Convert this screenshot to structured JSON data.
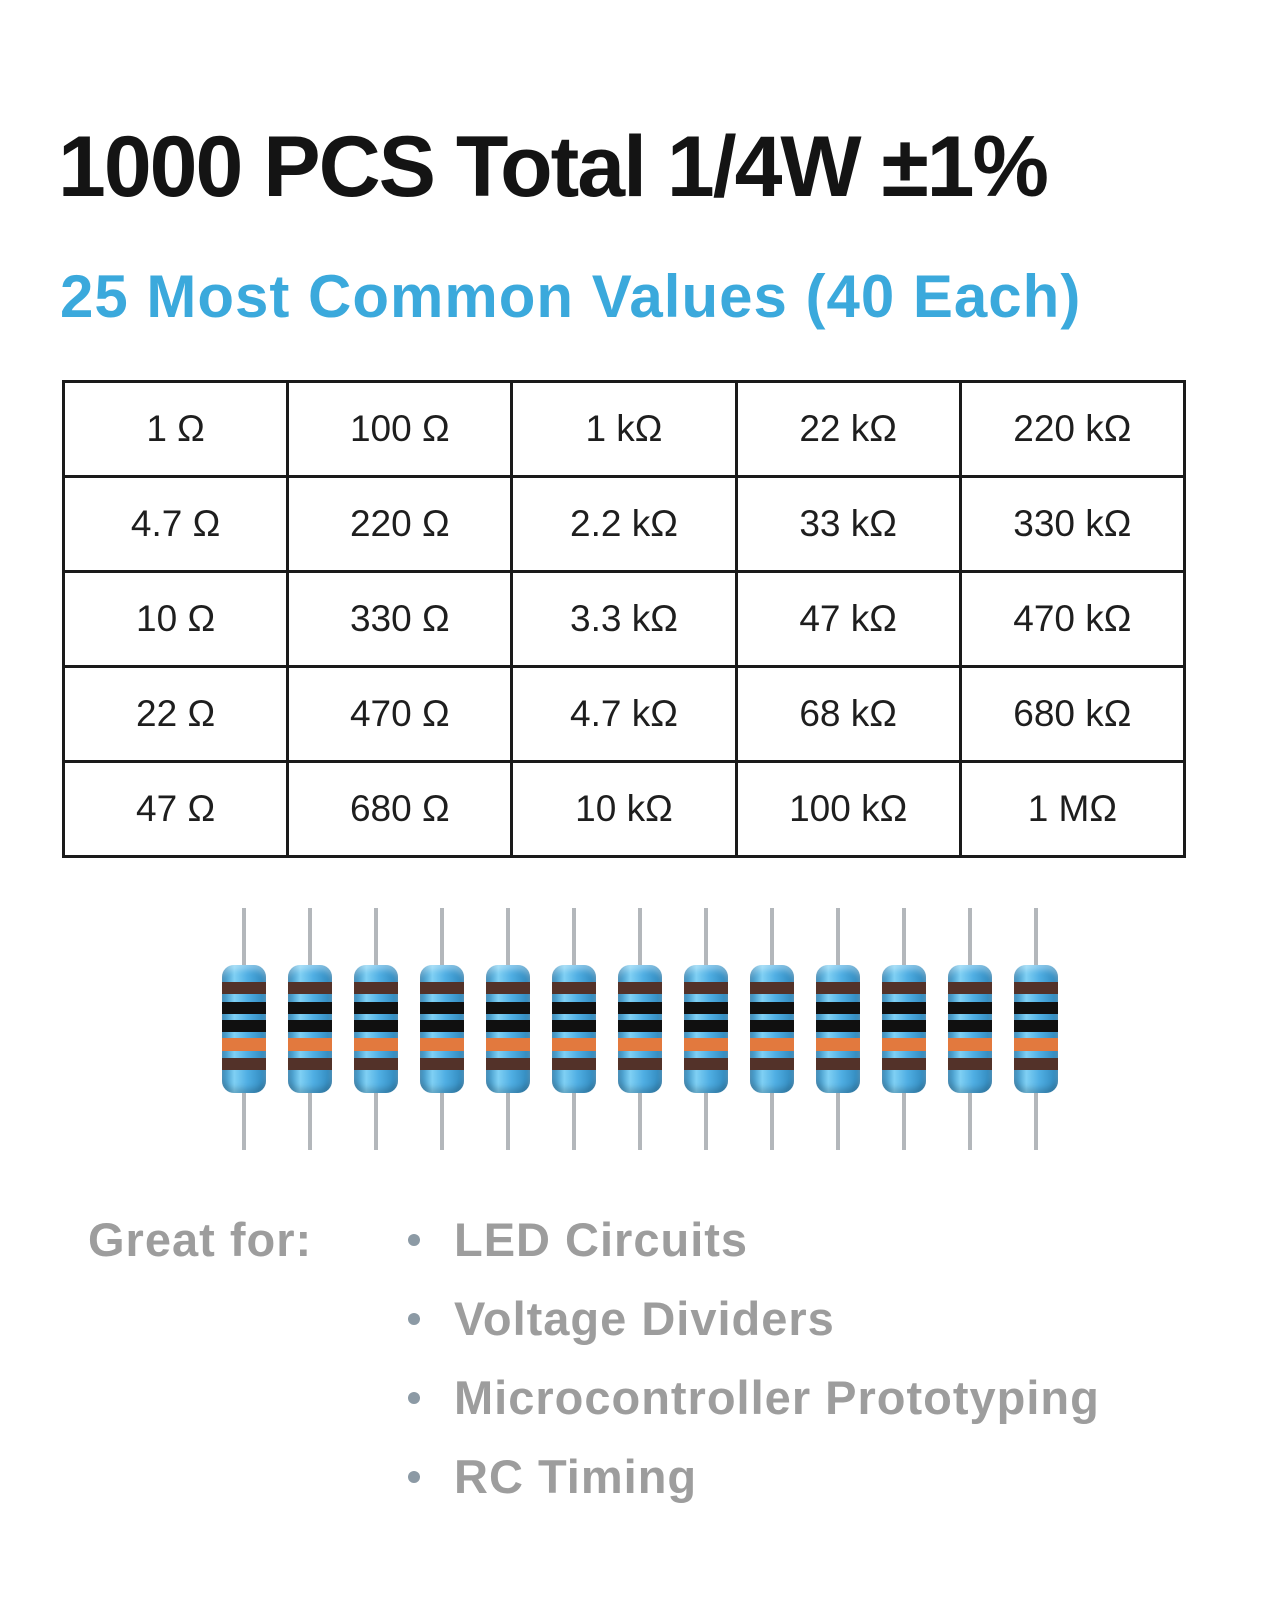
{
  "header": {
    "title": "1000 PCS Total 1/4W ±1%",
    "subtitle": "25 Most Common Values (40 Each)"
  },
  "table": {
    "rows": [
      [
        "1 Ω",
        "100 Ω",
        "1 kΩ",
        "22 kΩ",
        "220 kΩ"
      ],
      [
        "4.7 Ω",
        "220 Ω",
        "2.2 kΩ",
        "33 kΩ",
        "330 kΩ"
      ],
      [
        "10 Ω",
        "330 Ω",
        "3.3 kΩ",
        "47 kΩ",
        "470 kΩ"
      ],
      [
        "22 Ω",
        "470 Ω",
        "4.7 kΩ",
        "68 kΩ",
        "680 kΩ"
      ],
      [
        "47 Ω",
        "680 Ω",
        "10 kΩ",
        "100 kΩ",
        "1 MΩ"
      ]
    ]
  },
  "illustration": {
    "resistor_count": 13,
    "body_color": "#4FAEE3",
    "lead_color": "#B3B7BB",
    "band_colors": [
      "#533229",
      "#101010",
      "#101010",
      "#E2793E",
      "#533229"
    ]
  },
  "uses": {
    "label": "Great for:",
    "items": [
      "LED Circuits",
      "Voltage Dividers",
      "Microcontroller Prototyping",
      "RC Timing"
    ]
  },
  "colors": {
    "accent_blue": "#3BA9DC",
    "text_gray": "#9D9D9D",
    "bullet": "#8C9AA5",
    "title_black": "#141414"
  }
}
